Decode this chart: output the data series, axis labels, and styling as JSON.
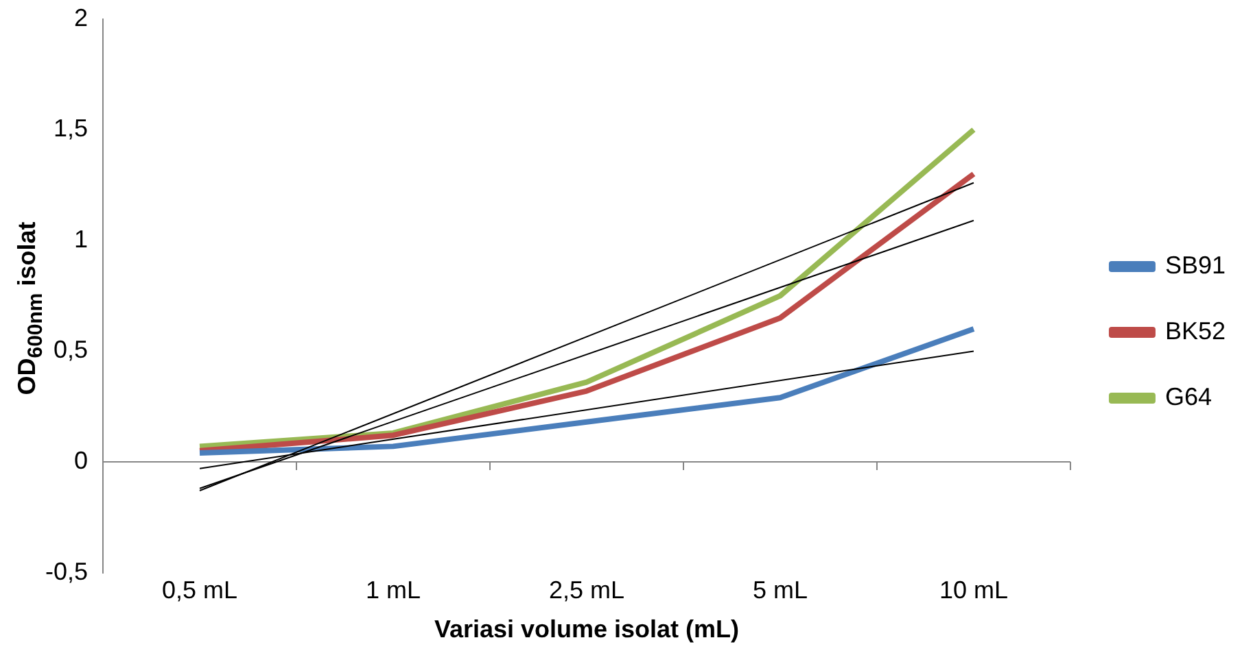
{
  "chart_data": {
    "type": "line",
    "xlabel": "Variasi volume isolat (mL)",
    "ylabel": "OD$_{600nm}$ isolat",
    "categories": [
      "0,5 mL",
      "1 mL",
      "2,5 mL",
      "5 mL",
      "10 mL"
    ],
    "series": [
      {
        "name": "SB91",
        "color": "#4a7ebb",
        "values": [
          0.04,
          0.07,
          0.18,
          0.29,
          0.6
        ]
      },
      {
        "name": "BK52",
        "color": "#be4b48",
        "values": [
          0.05,
          0.12,
          0.32,
          0.65,
          1.3
        ]
      },
      {
        "name": "G64",
        "color": "#98b954",
        "values": [
          0.07,
          0.13,
          0.36,
          0.75,
          1.5
        ]
      },
      {
        "type": "line",
        "color": "#000000",
        "x": [
          "0,5 mL",
          "10 mL"
        ],
        "values": [
          -0.03,
          0.5
        ]
      },
      {
        "type": "line",
        "color": "#000000",
        "x": [
          "0,5 mL",
          "10 mL"
        ],
        "values": [
          -0.12,
          1.09
        ]
      },
      {
        "type": "line",
        "color": "#000000",
        "x": [
          "0,5 mL",
          "10 mL"
        ],
        "values": [
          -0.13,
          1.26
        ]
      }
    ],
    "ylim": [
      -0.5,
      2
    ],
    "yticks": [
      {
        "value": -0.5,
        "label": "-0,5"
      },
      0,
      {
        "value": 0.5,
        "label": "0,5"
      },
      1,
      {
        "value": 1.5,
        "label": "1,5"
      },
      2
    ],
    "ref_lines": [
      {
        "axis": "y",
        "value": 0,
        "color": "#868686"
      }
    ],
    "grid": false,
    "legend": "right",
    "marker": "none"
  }
}
